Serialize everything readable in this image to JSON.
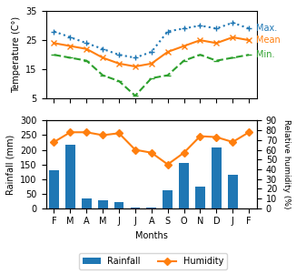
{
  "chart_data": [
    {
      "type": "line",
      "categories": [
        "F",
        "M",
        "A",
        "M",
        "J",
        "J",
        "A",
        "S",
        "O",
        "N",
        "D",
        "J",
        "F"
      ],
      "y_label": "Temperature (C°)",
      "ylim": [
        5,
        35
      ],
      "yticks": [
        5,
        15,
        25,
        35
      ],
      "tick_labels": "y",
      "series": [
        {
          "name": "Max.",
          "values": [
            28,
            26,
            24,
            22,
            20,
            19,
            21,
            28,
            29,
            30,
            29,
            31,
            29
          ],
          "marker": "plus",
          "line_style": "dotted"
        },
        {
          "name": "Mean",
          "values": [
            24,
            23,
            22,
            19,
            17,
            16,
            17,
            21,
            23,
            25,
            24,
            26,
            25
          ],
          "marker": "x",
          "line_style": "solid"
        },
        {
          "name": "Min.",
          "values": [
            20,
            19,
            18,
            13,
            11,
            6,
            12,
            13,
            18,
            20,
            18,
            19,
            20
          ],
          "marker": "hline",
          "line_style": "dashed"
        }
      ]
    },
    {
      "type": "bar",
      "categories": [
        "F",
        "M",
        "A",
        "M",
        "J",
        "J",
        "A",
        "S",
        "O",
        "N",
        "D",
        "J",
        "F"
      ],
      "x_label": "Months",
      "y_label": "Rainfall (mm)",
      "y2_label": "Relative humidity (%)",
      "ylim": [
        0,
        300
      ],
      "yticks": [
        0,
        50,
        100,
        150,
        200,
        250,
        300
      ],
      "y2lim": [
        0,
        90
      ],
      "y2ticks": [
        0,
        10,
        20,
        30,
        40,
        50,
        60,
        70,
        80,
        90
      ],
      "legend": "lower center",
      "series": [
        {
          "name": "Rainfall",
          "type": "bar",
          "values": [
            130,
            218,
            35,
            28,
            22,
            2,
            2,
            60,
            155,
            75,
            208,
            115,
            0
          ]
        },
        {
          "name": "Humidity",
          "type": "line",
          "axis": "y2",
          "marker": "diamond",
          "line_style": "solid",
          "values": [
            68,
            78,
            78,
            75,
            77,
            60,
            57,
            45,
            57,
            74,
            73,
            68,
            78
          ]
        }
      ]
    }
  ]
}
